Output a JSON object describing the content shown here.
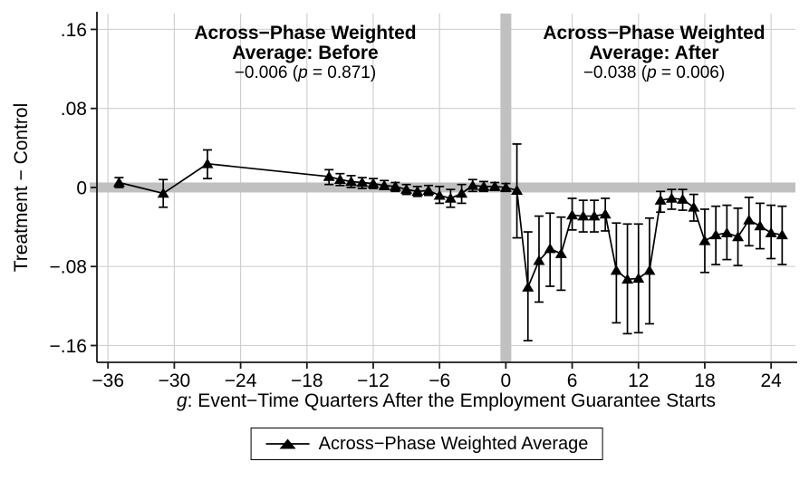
{
  "colors": {
    "background": "#ffffff",
    "series": "#000000",
    "gridline": "#d0d0d0",
    "reference_band": "#c0c0c0",
    "axis": "#1a1a1a",
    "text": "#000000"
  },
  "chart_data": {
    "type": "line",
    "title": "",
    "ylabel": "Treatment − Control",
    "xlabel_italic": "g",
    "xlabel_rest": ": Event−Time Quarters After the Employment Guarantee Starts",
    "x_ticks": [
      -36,
      -30,
      -24,
      -18,
      -12,
      -6,
      0,
      6,
      12,
      18,
      24
    ],
    "x_tick_labels": [
      "−36",
      "−30",
      "−24",
      "−18",
      "−12",
      "−6",
      "0",
      "6",
      "12",
      "18",
      "24"
    ],
    "y_ticks": [
      0.16,
      0.08,
      0,
      -0.08,
      -0.16
    ],
    "y_tick_labels": [
      ".16",
      ".08",
      "0",
      "−.08",
      "−.16"
    ],
    "xlim": [
      -37,
      26.2
    ],
    "ylim": [
      -0.177,
      0.176
    ],
    "grid": true,
    "reference_bands": {
      "horizontal_at": 0,
      "vertical_at": 0
    },
    "legend": {
      "position": "bottom-center",
      "label": "Across−Phase Weighted Average",
      "marker": "line-with-filled-triangle"
    },
    "annotations": {
      "before": {
        "title_line1": "Across−Phase Weighted",
        "title_line2": "Average: Before",
        "estimate": -0.006,
        "p_value": 0.871,
        "stat_prefix": "−0.006 (",
        "stat_p": "p",
        "stat_suffix": " = 0.871)"
      },
      "after": {
        "title_line1": "Across−Phase Weighted",
        "title_line2": "Average: After",
        "estimate": -0.038,
        "p_value": 0.006,
        "stat_prefix": "−0.038 (",
        "stat_p": "p",
        "stat_suffix": " = 0.006)"
      }
    },
    "series": [
      {
        "name": "Across−Phase Weighted Average",
        "marker": "filled-triangle",
        "color": "#000000",
        "points_format": [
          "event_time_quarter",
          "value",
          "ci_low",
          "ci_high"
        ],
        "points": [
          [
            -35,
            0.005,
            0.0,
            0.01
          ],
          [
            -31,
            -0.006,
            -0.02,
            0.008
          ],
          [
            -27,
            0.024,
            0.009,
            0.038
          ],
          [
            -16,
            0.011,
            0.003,
            0.018
          ],
          [
            -15,
            0.008,
            0.002,
            0.014
          ],
          [
            -14,
            0.006,
            0.0,
            0.012
          ],
          [
            -13,
            0.005,
            -0.001,
            0.01
          ],
          [
            -12,
            0.004,
            -0.001,
            0.009
          ],
          [
            -11,
            0.002,
            -0.002,
            0.007
          ],
          [
            -10,
            0.001,
            -0.004,
            0.005
          ],
          [
            -9,
            -0.002,
            -0.007,
            0.003
          ],
          [
            -8,
            -0.004,
            -0.009,
            0.001
          ],
          [
            -7,
            -0.003,
            -0.008,
            0.002
          ],
          [
            -6,
            -0.008,
            -0.016,
            0.001
          ],
          [
            -5,
            -0.011,
            -0.02,
            -0.002
          ],
          [
            -4,
            -0.006,
            -0.016,
            0.003
          ],
          [
            -3,
            0.002,
            -0.004,
            0.008
          ],
          [
            -2,
            0.001,
            -0.004,
            0.006
          ],
          [
            -1,
            0.001,
            -0.003,
            0.005
          ],
          [
            0,
            0.0,
            -0.004,
            0.004
          ],
          [
            1,
            -0.003,
            -0.051,
            0.044
          ],
          [
            2,
            -0.101,
            -0.155,
            -0.045
          ],
          [
            3,
            -0.074,
            -0.116,
            -0.029
          ],
          [
            4,
            -0.062,
            -0.1,
            -0.026
          ],
          [
            5,
            -0.067,
            -0.104,
            -0.03
          ],
          [
            6,
            -0.028,
            -0.043,
            -0.011
          ],
          [
            7,
            -0.029,
            -0.045,
            -0.013
          ],
          [
            8,
            -0.029,
            -0.045,
            -0.013
          ],
          [
            9,
            -0.027,
            -0.044,
            -0.011
          ],
          [
            10,
            -0.084,
            -0.137,
            -0.036
          ],
          [
            11,
            -0.093,
            -0.148,
            -0.037
          ],
          [
            12,
            -0.092,
            -0.147,
            -0.037
          ],
          [
            13,
            -0.084,
            -0.138,
            -0.031
          ],
          [
            14,
            -0.013,
            -0.025,
            -0.004
          ],
          [
            15,
            -0.011,
            -0.022,
            -0.002
          ],
          [
            16,
            -0.012,
            -0.023,
            -0.002
          ],
          [
            17,
            -0.02,
            -0.034,
            -0.007
          ],
          [
            18,
            -0.054,
            -0.086,
            -0.022
          ],
          [
            19,
            -0.048,
            -0.078,
            -0.019
          ],
          [
            20,
            -0.046,
            -0.073,
            -0.018
          ],
          [
            21,
            -0.05,
            -0.079,
            -0.021
          ],
          [
            22,
            -0.033,
            -0.059,
            -0.01
          ],
          [
            23,
            -0.039,
            -0.062,
            -0.016
          ],
          [
            24,
            -0.046,
            -0.072,
            -0.018
          ],
          [
            25,
            -0.048,
            -0.078,
            -0.019
          ]
        ]
      }
    ]
  }
}
